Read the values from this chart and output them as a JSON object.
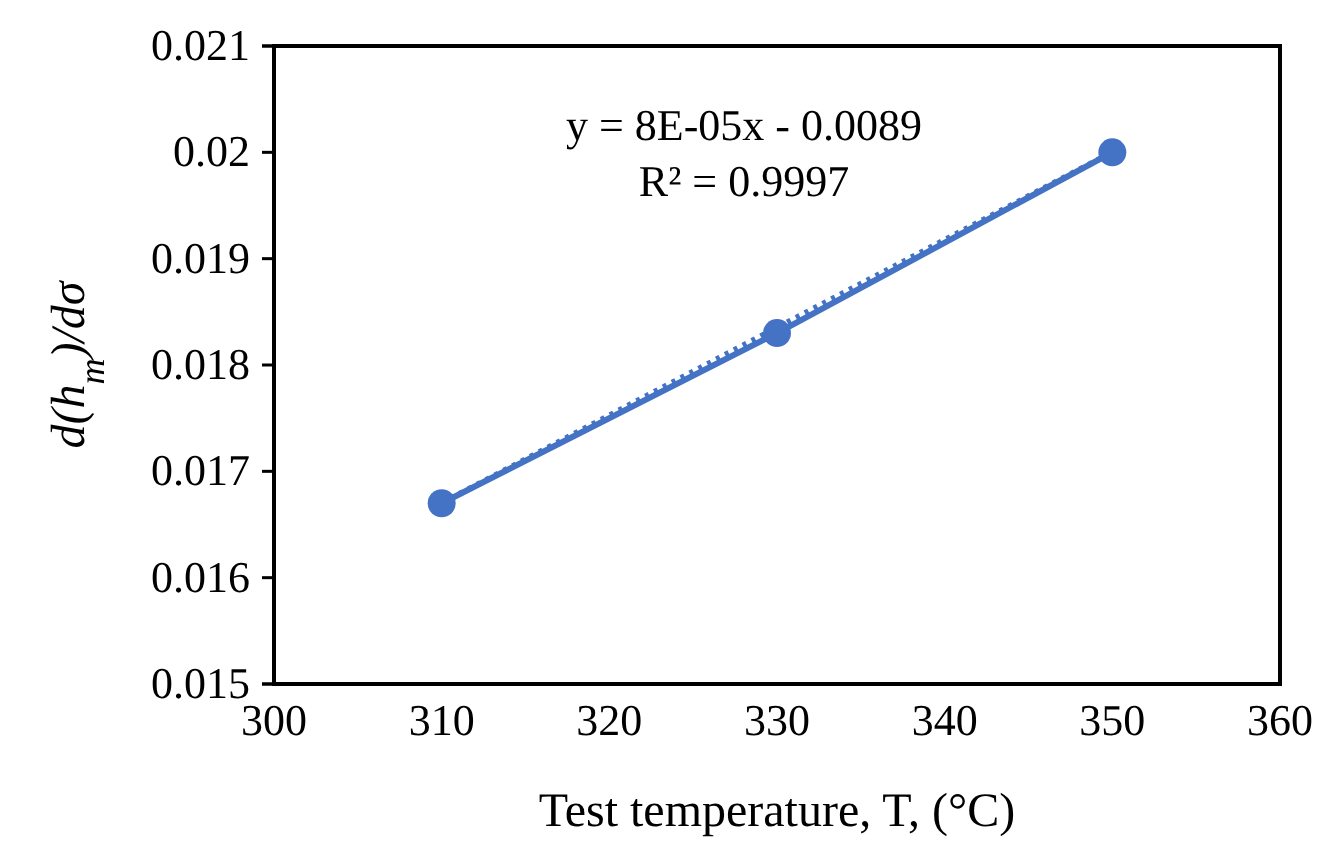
{
  "chart_data": {
    "type": "line",
    "xlabel": "Test temperature, T, (°C)",
    "ylabel": "d(h$_{m}$)/dσ",
    "x": [
      310,
      330,
      350
    ],
    "series": [
      {
        "color": "#4472c4",
        "values": [
          0.0167,
          0.0183,
          0.02
        ],
        "marker": "circle",
        "line_style": "solid"
      },
      {
        "color": "#4472c4",
        "x": [
          310,
          350
        ],
        "values": [
          0.0167,
          0.02
        ],
        "marker": "none",
        "line_style": "dotted"
      }
    ],
    "annotations": [
      {
        "text": "y = 8E-05x - 0.0089"
      },
      {
        "text": "R² = 0.9997"
      }
    ],
    "xlim": [
      300,
      360
    ],
    "xticks": [
      300,
      310,
      320,
      330,
      340,
      350,
      360
    ],
    "ylim": [
      0.015,
      0.021
    ],
    "yticks": [
      0.015,
      0.016,
      0.017,
      0.018,
      0.019,
      0.02,
      0.021
    ],
    "grid": false
  }
}
